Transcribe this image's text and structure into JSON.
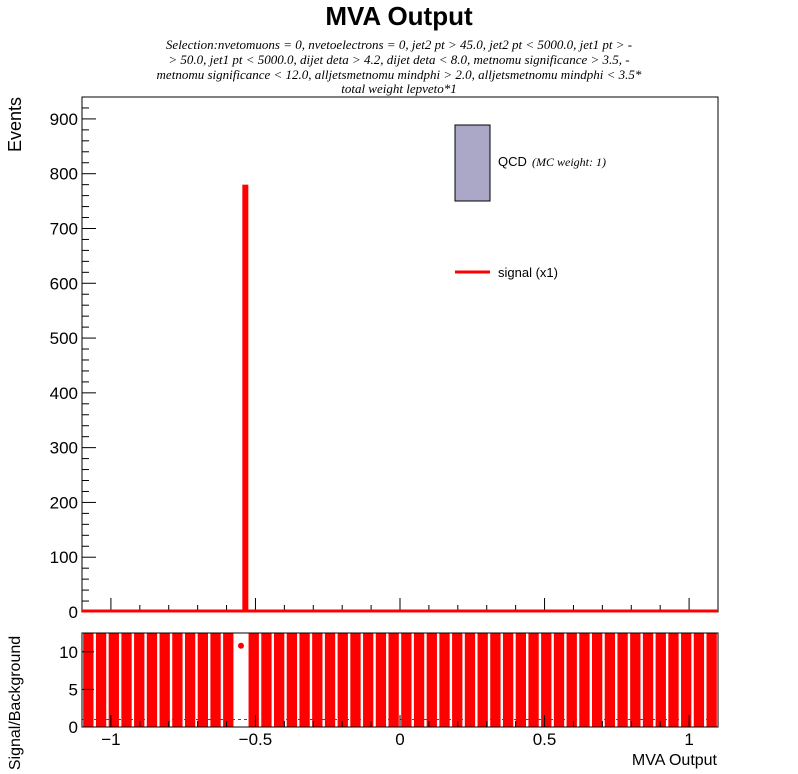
{
  "chart_data": [
    {
      "type": "bar",
      "title": "MVA Output",
      "subtitle_lines": [
        "Selection:nvetomuons = 0, nvetoelectrons = 0, jet2 pt > 45.0, jet2 pt < 5000.0, jet1 pt > -",
        "> 50.0, jet1 pt < 5000.0, dijet deta > 4.2, dijet deta < 8.0, metnomu significance > 3.5, -",
        "metnomu significance < 12.0, alljetsmetnomu mindphi > 2.0, alljetsmetnomu mindphi < 3.5*",
        "total weight lepveto*1"
      ],
      "ylabel": "Events",
      "xlim": [
        -1.1,
        1.1
      ],
      "ylim": [
        0,
        940
      ],
      "yticks": [
        0,
        100,
        200,
        300,
        400,
        500,
        600,
        700,
        800,
        900
      ],
      "legend": {
        "placement": "top-right",
        "entries": [
          {
            "label": "QCD",
            "note": "(MC weight: 1)",
            "color": "#aaa8c6",
            "kind": "box"
          },
          {
            "label": "signal (x1)",
            "color": "#ff0000",
            "kind": "line"
          }
        ]
      },
      "series": [
        {
          "name": "signal (x1)",
          "color": "#ff0000",
          "x": [
            -0.535
          ],
          "y": [
            780
          ]
        },
        {
          "name": "QCD",
          "color": "#aaa8c6",
          "x": [],
          "y": []
        }
      ]
    },
    {
      "type": "bar",
      "ylabel": "Signal/Background",
      "xlabel": "MVA Output",
      "xlim": [
        -1.1,
        1.1
      ],
      "ylim": [
        0,
        12.5
      ],
      "yticks": [
        0,
        5,
        10
      ],
      "xticks": [
        -1,
        -0.5,
        0,
        0.5,
        1
      ],
      "xtick_labels": [
        "−1",
        "−0.5",
        "0",
        "0.5",
        "1"
      ],
      "color": "#ff0000",
      "bin_width": 0.044,
      "bar_value": 12.5,
      "gap_bins": [
        -0.54
      ],
      "marker": {
        "x": -0.55,
        "y": 10.8
      }
    }
  ]
}
